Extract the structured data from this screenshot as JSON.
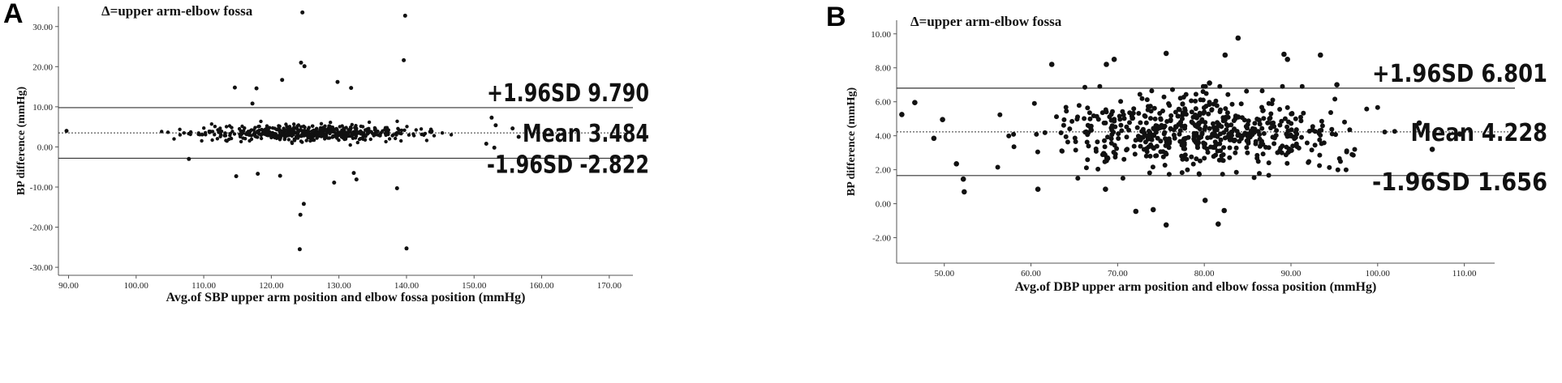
{
  "chart_data": [
    {
      "panel": "A",
      "type": "scatter",
      "annotation": "Δ=upper arm-elbow fossa",
      "xlabel": "Avg.of SBP upper arm position and elbow fossa position (mmHg)",
      "ylabel": "BP difference (mmHg)",
      "xlim": [
        88.5,
        173.5
      ],
      "ylim": [
        -32,
        35
      ],
      "x_ticks": [
        "90.00",
        "100.00",
        "110.00",
        "120.00",
        "130.00",
        "140.00",
        "150.00",
        "160.00",
        "170.00"
      ],
      "y_ticks": [
        "30.00",
        "20.00",
        "10.00",
        "0.00",
        "-10.00",
        "-20.00",
        "-30.00"
      ],
      "grid": false,
      "reference_lines": [
        {
          "name": "+1.96SD",
          "value": 9.79,
          "label": "+1.96SD 9.790",
          "style": "solid"
        },
        {
          "name": "Mean",
          "value": 3.484,
          "label": "Mean 3.484",
          "style": "dotted"
        },
        {
          "name": "-1.96SD",
          "value": -2.822,
          "label": "-1.96SD -2.822",
          "style": "solid"
        }
      ],
      "outliers": [
        [
          124.6,
          33.5
        ],
        [
          139.8,
          32.7
        ],
        [
          124.4,
          21.0
        ],
        [
          124.9,
          20.1
        ],
        [
          139.6,
          21.6
        ],
        [
          121.6,
          16.7
        ],
        [
          129.8,
          16.2
        ],
        [
          131.8,
          14.7
        ],
        [
          114.6,
          14.8
        ],
        [
          117.8,
          14.6
        ],
        [
          117.2,
          10.8
        ],
        [
          107.8,
          -3.0
        ],
        [
          114.8,
          -7.3
        ],
        [
          118.0,
          -6.7
        ],
        [
          121.3,
          -7.2
        ],
        [
          129.3,
          -8.9
        ],
        [
          132.2,
          -6.5
        ],
        [
          132.6,
          -8.1
        ],
        [
          138.6,
          -10.3
        ],
        [
          124.8,
          -14.2
        ],
        [
          124.3,
          -16.9
        ],
        [
          124.2,
          -25.5
        ],
        [
          140.0,
          -25.3
        ],
        [
          89.7,
          4.0
        ],
        [
          152.6,
          7.3
        ],
        [
          153.2,
          5.4
        ],
        [
          155.7,
          4.6
        ],
        [
          156.6,
          2.5
        ],
        [
          151.8,
          0.8
        ],
        [
          153.0,
          -0.2
        ]
      ],
      "cluster": {
        "x_range": [
          101,
          151
        ],
        "y_mean": 3.5,
        "y_spread": 3.3
      }
    },
    {
      "panel": "B",
      "type": "scatter",
      "annotation": "Δ=upper arm-elbow fossa",
      "xlabel": "Avg.of DBP upper arm position and elbow fossa position (mmHg)",
      "ylabel": "BP difference (mmHg)",
      "xlim": [
        44.5,
        113.5
      ],
      "ylim": [
        -3.5,
        10.8
      ],
      "x_ticks": [
        "50.00",
        "60.00",
        "70.00",
        "80.00",
        "90.00",
        "100.00",
        "110.00"
      ],
      "y_ticks": [
        "10.00",
        "8.00",
        "6.00",
        "4.00",
        "2.00",
        "0.00",
        "-2.00"
      ],
      "grid": false,
      "reference_lines": [
        {
          "name": "+1.96SD",
          "value": 6.801,
          "label": "+1.96SD 6.801",
          "style": "solid"
        },
        {
          "name": "Mean",
          "value": 4.228,
          "label": "Mean 4.228",
          "style": "dotted"
        },
        {
          "name": "-1.96SD",
          "value": 1.656,
          "label": "-1.96SD 1.656",
          "style": "solid"
        }
      ],
      "outliers": [
        [
          83.9,
          9.75
        ],
        [
          75.6,
          8.85
        ],
        [
          89.2,
          8.8
        ],
        [
          93.4,
          8.75
        ],
        [
          82.4,
          8.75
        ],
        [
          69.6,
          8.5
        ],
        [
          89.6,
          8.5
        ],
        [
          68.7,
          8.2
        ],
        [
          62.4,
          8.2
        ],
        [
          80.6,
          7.1
        ],
        [
          95.3,
          7.0
        ],
        [
          45.1,
          5.25
        ],
        [
          46.6,
          5.95
        ],
        [
          48.8,
          3.85
        ],
        [
          49.8,
          4.95
        ],
        [
          52.3,
          0.7
        ],
        [
          52.2,
          1.45
        ],
        [
          51.4,
          2.35
        ],
        [
          60.8,
          0.85
        ],
        [
          68.6,
          0.85
        ],
        [
          72.1,
          -0.45
        ],
        [
          74.1,
          -0.35
        ],
        [
          75.6,
          -1.25
        ],
        [
          81.6,
          -1.2
        ],
        [
          80.1,
          0.2
        ],
        [
          82.3,
          -0.4
        ],
        [
          106.3,
          3.2
        ],
        [
          109.5,
          4.1
        ],
        [
          104.8,
          4.75
        ]
      ],
      "cluster": {
        "x_range": [
          54,
          104
        ],
        "y_mean": 4.25,
        "y_spread": 1.1
      }
    }
  ]
}
